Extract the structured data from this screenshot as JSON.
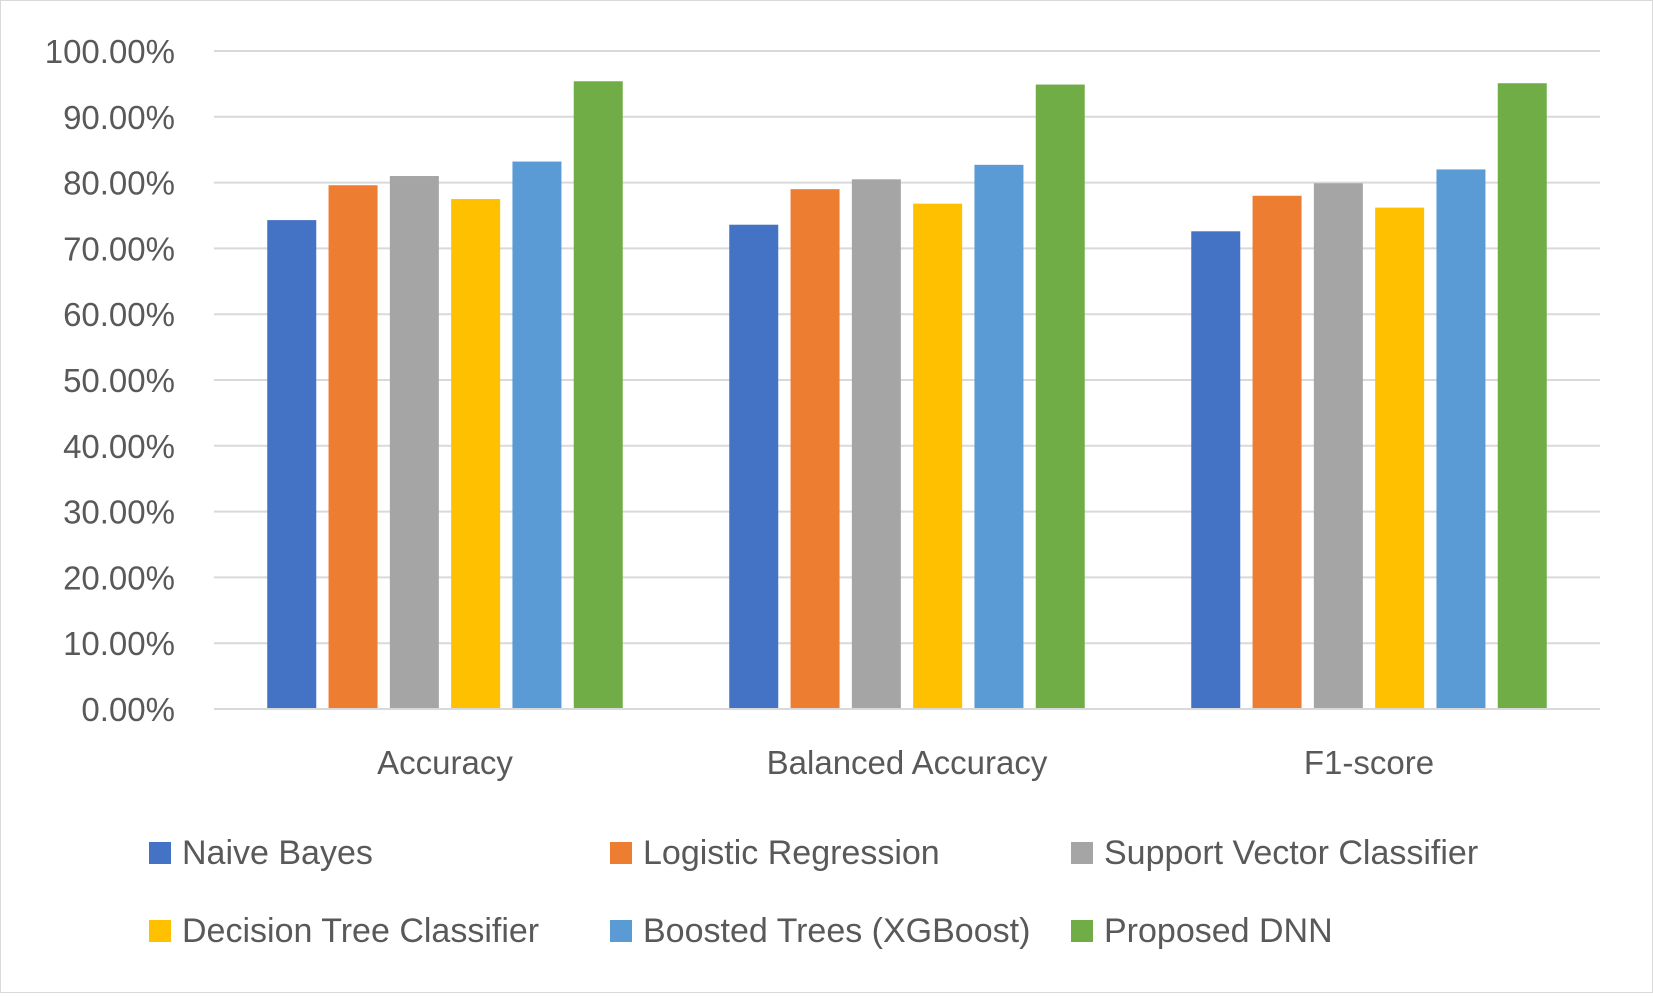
{
  "chart_data": {
    "type": "bar",
    "title": "",
    "xlabel": "",
    "ylabel": "",
    "categories": [
      "Accuracy",
      "Balanced Accuracy",
      "F1-score"
    ],
    "ylim": [
      0,
      1
    ],
    "yticks": [
      0,
      0.1,
      0.2,
      0.3,
      0.4,
      0.5,
      0.6,
      0.7,
      0.8,
      0.9,
      1.0
    ],
    "ytick_labels": [
      "0.00%",
      "10.00%",
      "20.00%",
      "30.00%",
      "40.00%",
      "50.00%",
      "60.00%",
      "70.00%",
      "80.00%",
      "90.00%",
      "100.00%"
    ],
    "grid": true,
    "legend_position": "bottom",
    "series": [
      {
        "name": "Naive Bayes",
        "color": "#4472C4",
        "values": [
          0.743,
          0.736,
          0.726
        ]
      },
      {
        "name": "Logistic Regression",
        "color": "#ED7D31",
        "values": [
          0.796,
          0.79,
          0.78
        ]
      },
      {
        "name": "Support Vector Classifier",
        "color": "#A5A5A5",
        "values": [
          0.81,
          0.805,
          0.799
        ]
      },
      {
        "name": "Decision Tree Classifier",
        "color": "#FFC000",
        "values": [
          0.775,
          0.768,
          0.762
        ]
      },
      {
        "name": "Boosted Trees (XGBoost)",
        "color": "#5B9BD5",
        "values": [
          0.832,
          0.827,
          0.82
        ]
      },
      {
        "name": "Proposed DNN",
        "color": "#70AD47",
        "values": [
          0.954,
          0.949,
          0.951
        ]
      }
    ]
  }
}
